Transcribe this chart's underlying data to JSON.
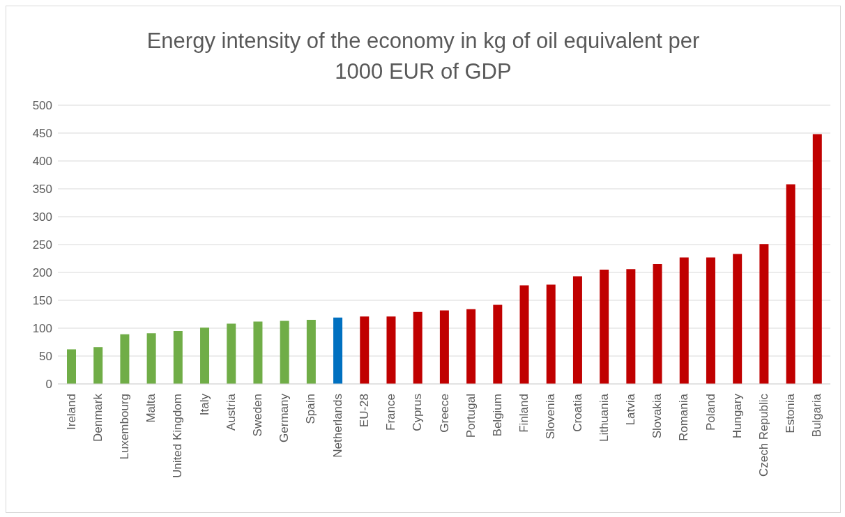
{
  "chart_data": {
    "type": "bar",
    "title": "Energy intensity of the economy in kg of oil equivalent per 1000 EUR of GDP",
    "categories": [
      "Ireland",
      "Denmark",
      "Luxembourg",
      "Malta",
      "United Kingdom",
      "Italy",
      "Austria",
      "Sweden",
      "Germany",
      "Spain",
      "Netherlands",
      "EU-28",
      "France",
      "Cyprus",
      "Greece",
      "Portugal",
      "Belgium",
      "Finland",
      "Slovenia",
      "Croatia",
      "Lithuania",
      "Latvia",
      "Slovakia",
      "Romania",
      "Poland",
      "Hungary",
      "Czech Republic",
      "Estonia",
      "Bulgaria"
    ],
    "values": [
      62,
      66,
      89,
      91,
      95,
      101,
      108,
      112,
      113,
      115,
      119,
      121,
      121,
      129,
      132,
      134,
      142,
      177,
      178,
      193,
      205,
      206,
      215,
      227,
      227,
      233,
      251,
      358,
      448
    ],
    "colors": [
      "#70ad47",
      "#70ad47",
      "#70ad47",
      "#70ad47",
      "#70ad47",
      "#70ad47",
      "#70ad47",
      "#70ad47",
      "#70ad47",
      "#70ad47",
      "#0070c0",
      "#c00000",
      "#c00000",
      "#c00000",
      "#c00000",
      "#c00000",
      "#c00000",
      "#c00000",
      "#c00000",
      "#c00000",
      "#c00000",
      "#c00000",
      "#c00000",
      "#c00000",
      "#c00000",
      "#c00000",
      "#c00000",
      "#c00000",
      "#c00000"
    ],
    "ylim": [
      0,
      500
    ],
    "yticks": [
      0,
      50,
      100,
      150,
      200,
      250,
      300,
      350,
      400,
      450,
      500
    ],
    "grid": "y"
  }
}
